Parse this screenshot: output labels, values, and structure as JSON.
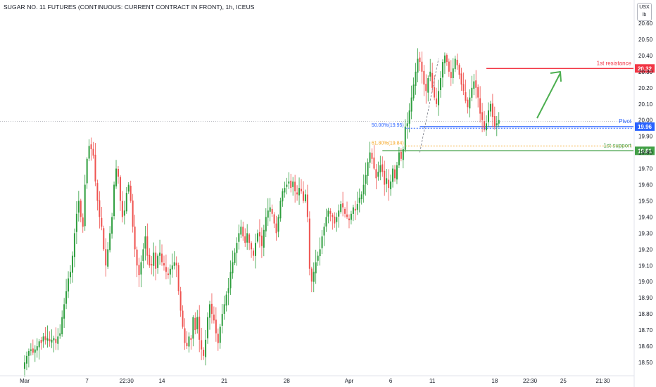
{
  "header": {
    "title": "SUGAR NO. 11 FUTURES (CONTINUOUS: CURRENT CONTRACT IN FRONT), 1h, ICEUS"
  },
  "unit": {
    "currency": "USX",
    "measure": "lb"
  },
  "colors": {
    "up": "#26a69a",
    "up_bar": "#2e9e3e",
    "down": "#ef5350",
    "resistance": "#f23645",
    "pivot": "#2962ff",
    "support": "#43a047",
    "fib50": "#2962ff",
    "fib618": "#f5a623",
    "arrow": "#4caf50",
    "axis_text": "#131722"
  },
  "chart_data": {
    "type": "candlestick",
    "y_axis": {
      "range": [
        18.45,
        20.66
      ],
      "ticks": [
        "18.50",
        "18.60",
        "18.70",
        "18.80",
        "18.90",
        "19.00",
        "19.10",
        "19.20",
        "19.30",
        "19.40",
        "19.50",
        "19.60",
        "19.70",
        "19.80",
        "19.90",
        "20.00",
        "20.10",
        "20.20",
        "20.30",
        "20.40",
        "20.50",
        "20.60"
      ]
    },
    "x_axis": {
      "labels": [
        {
          "text": "Mar",
          "bar": 0
        },
        {
          "text": "7",
          "bar": 30
        },
        {
          "text": "22:30",
          "bar": 49
        },
        {
          "text": "14",
          "bar": 66
        },
        {
          "text": "21",
          "bar": 96
        },
        {
          "text": "28",
          "bar": 126
        },
        {
          "text": "Apr",
          "bar": 156
        },
        {
          "text": "6",
          "bar": 176
        },
        {
          "text": "11",
          "bar": 196
        },
        {
          "text": "18",
          "bar": 226
        },
        {
          "text": "22:30",
          "bar": 243
        },
        {
          "text": "25",
          "bar": 259
        },
        {
          "text": "21:30",
          "bar": 278
        }
      ]
    },
    "levels": {
      "resistance": {
        "label": "1st resistance",
        "value": 20.32,
        "tag": "20.32"
      },
      "pivot": {
        "label": "Pivot",
        "value": 19.96,
        "tag": "19.96"
      },
      "support": {
        "label": "1st support",
        "value": 19.81,
        "tag": "19.81"
      }
    },
    "fibs": [
      {
        "label": "50.00%(19.95)",
        "value": 19.95
      },
      {
        "label": "61.80%(19.84)",
        "value": 19.84
      }
    ],
    "closes": [
      18.5,
      18.54,
      18.57,
      18.58,
      18.56,
      18.58,
      18.6,
      18.63,
      18.62,
      18.66,
      18.64,
      18.65,
      18.63,
      18.64,
      18.65,
      18.62,
      18.66,
      18.68,
      18.78,
      18.86,
      18.94,
      19.02,
      19.06,
      19.16,
      19.3,
      19.42,
      19.5,
      19.4,
      19.34,
      19.6,
      19.76,
      19.84,
      19.82,
      19.78,
      19.62,
      19.5,
      19.4,
      19.34,
      19.2,
      19.1,
      19.2,
      19.3,
      19.4,
      19.6,
      19.7,
      19.65,
      19.5,
      19.4,
      19.44,
      19.55,
      19.6,
      19.5,
      19.34,
      19.2,
      19.1,
      19.04,
      19.12,
      19.2,
      19.28,
      19.16,
      19.1,
      19.1,
      19.18,
      19.08,
      19.16,
      19.18,
      19.12,
      19.1,
      19.06,
      19.04,
      19.08,
      19.1,
      19.12,
      19.1,
      18.94,
      18.82,
      18.72,
      18.62,
      18.6,
      18.66,
      18.64,
      18.78,
      18.7,
      18.78,
      18.64,
      18.58,
      18.54,
      18.64,
      18.78,
      18.86,
      18.8,
      18.76,
      18.68,
      18.62,
      18.72,
      18.8,
      18.86,
      18.92,
      18.96,
      19.06,
      19.12,
      19.18,
      19.24,
      19.3,
      19.34,
      19.28,
      19.24,
      19.3,
      19.24,
      19.2,
      19.16,
      19.24,
      19.3,
      19.28,
      19.22,
      19.32,
      19.4,
      19.44,
      19.46,
      19.42,
      19.36,
      19.3,
      19.4,
      19.5,
      19.56,
      19.58,
      19.6,
      19.62,
      19.58,
      19.62,
      19.56,
      19.54,
      19.58,
      19.56,
      19.5,
      19.54,
      19.4,
      19.08,
      19.0,
      19.06,
      19.12,
      19.16,
      19.2,
      19.28,
      19.34,
      19.4,
      19.44,
      19.42,
      19.4,
      19.36,
      19.4,
      19.44,
      19.48,
      19.46,
      19.42,
      19.4,
      19.38,
      19.42,
      19.46,
      19.44,
      19.48,
      19.52,
      19.54,
      19.6,
      19.66,
      19.74,
      19.8,
      19.76,
      19.7,
      19.64,
      19.68,
      19.72,
      19.68,
      19.6,
      19.64,
      19.58,
      19.62,
      19.7,
      19.64,
      19.72,
      19.8,
      19.76,
      19.82,
      19.96,
      19.98,
      20.06,
      20.14,
      20.22,
      20.3,
      20.38,
      20.36,
      20.3,
      20.22,
      20.18,
      20.26,
      20.3,
      20.2,
      20.14,
      20.1,
      20.18,
      20.26,
      20.36,
      20.4,
      20.36,
      20.3,
      20.26,
      20.32,
      20.38,
      20.34,
      20.28,
      20.22,
      20.18,
      20.12,
      20.08,
      20.14,
      20.2,
      20.24,
      20.2,
      20.14,
      20.04,
      20.0,
      19.94,
      19.98,
      20.06,
      20.1,
      20.02,
      19.96,
      19.98,
      20.0
    ]
  }
}
